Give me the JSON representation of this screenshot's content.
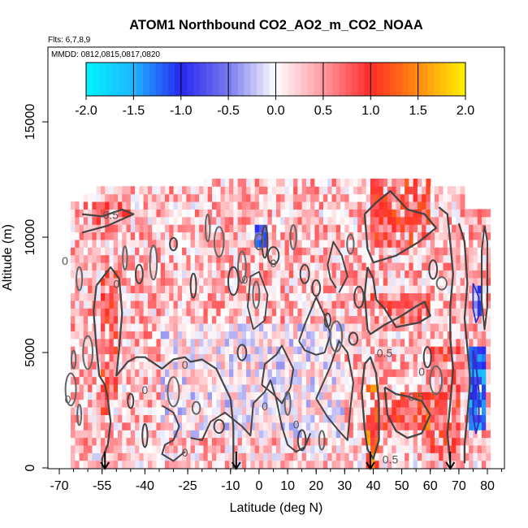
{
  "chart_data": {
    "type": "heatmap",
    "title": "ATOM1 Northbound CO2_AO2_m_CO2_NOAA",
    "subtitle_flights": "Flts: 6,7,8,9",
    "subtitle_dates": "MMDD: 0812,0815,0817,0820",
    "xlabel": "Latitude (deg N)",
    "ylabel": "Altitude (m)",
    "xlim": [
      -70,
      85
    ],
    "ylim": [
      0,
      17000
    ],
    "x_ticks": [
      {
        "value": -70,
        "label": "-70"
      },
      {
        "value": -55,
        "label": "-55"
      },
      {
        "value": -40,
        "label": "-40"
      },
      {
        "value": -25,
        "label": "-25"
      },
      {
        "value": -10,
        "label": "-10"
      },
      {
        "value": 0,
        "label": "0"
      },
      {
        "value": 10,
        "label": "10"
      },
      {
        "value": 20,
        "label": "20"
      },
      {
        "value": 30,
        "label": "30"
      },
      {
        "value": 40,
        "label": "40"
      },
      {
        "value": 50,
        "label": "50"
      },
      {
        "value": 60,
        "label": "60"
      },
      {
        "value": 70,
        "label": "70"
      },
      {
        "value": 80,
        "label": "80"
      }
    ],
    "y_ticks": [
      {
        "value": 0,
        "label": "0"
      },
      {
        "value": 5000,
        "label": "5000"
      },
      {
        "value": 10000,
        "label": "10000"
      },
      {
        "value": 15000,
        "label": "15000"
      }
    ],
    "colorbar": {
      "range": [
        -2.0,
        2.0
      ],
      "ticks": [
        {
          "value": -2.0,
          "label": "-2.0"
        },
        {
          "value": -1.5,
          "label": "-1.5"
        },
        {
          "value": -1.0,
          "label": "-1.0"
        },
        {
          "value": -0.5,
          "label": "-0.5"
        },
        {
          "value": 0.0,
          "label": "0.0"
        },
        {
          "value": 0.5,
          "label": "0.5"
        },
        {
          "value": 1.0,
          "label": "1.0"
        },
        {
          "value": 1.5,
          "label": "1.5"
        },
        {
          "value": 2.0,
          "label": "2.0"
        }
      ],
      "stops": [
        {
          "v": -2.0,
          "c": "#00f5ff"
        },
        {
          "v": -1.5,
          "c": "#1eb4ff"
        },
        {
          "v": -1.0,
          "c": "#2828f0"
        },
        {
          "v": -0.5,
          "c": "#7878ee"
        },
        {
          "v": 0.0,
          "c": "#ffffff"
        },
        {
          "v": 0.5,
          "c": "#ff9aa0"
        },
        {
          "v": 1.0,
          "c": "#ff2a28"
        },
        {
          "v": 1.5,
          "c": "#ff8c10"
        },
        {
          "v": 2.0,
          "c": "#fff200"
        }
      ]
    },
    "contour_labels": [
      {
        "text": "0.5",
        "lat": -52,
        "alt": 10800
      },
      {
        "text": "0",
        "lat": -68,
        "alt": 8800
      },
      {
        "text": "0",
        "lat": -50,
        "alt": 7800
      },
      {
        "text": "0",
        "lat": -26,
        "alt": 4300
      },
      {
        "text": "0",
        "lat": -40,
        "alt": 3200
      },
      {
        "text": "0",
        "lat": -67,
        "alt": 2800
      },
      {
        "text": "0",
        "lat": -26,
        "alt": 500
      },
      {
        "text": "0",
        "lat": 2,
        "alt": 2500
      },
      {
        "text": "0",
        "lat": 13,
        "alt": 1700
      },
      {
        "text": "0",
        "lat": 5,
        "alt": 8700
      },
      {
        "text": "0",
        "lat": -5,
        "alt": 8000
      },
      {
        "text": "0",
        "lat": 57,
        "alt": 4000
      },
      {
        "text": "0.5",
        "lat": 44,
        "alt": 4800
      },
      {
        "text": "0.5",
        "lat": 55,
        "alt": 2900
      },
      {
        "text": "0.5",
        "lat": 46,
        "alt": 200
      }
    ],
    "flight_arrows": [
      -54,
      -8,
      39,
      67
    ],
    "series_description": "CO2 difference (AO2 minus NOAA), ppm; contours at -0.5, 0, 0.5"
  }
}
